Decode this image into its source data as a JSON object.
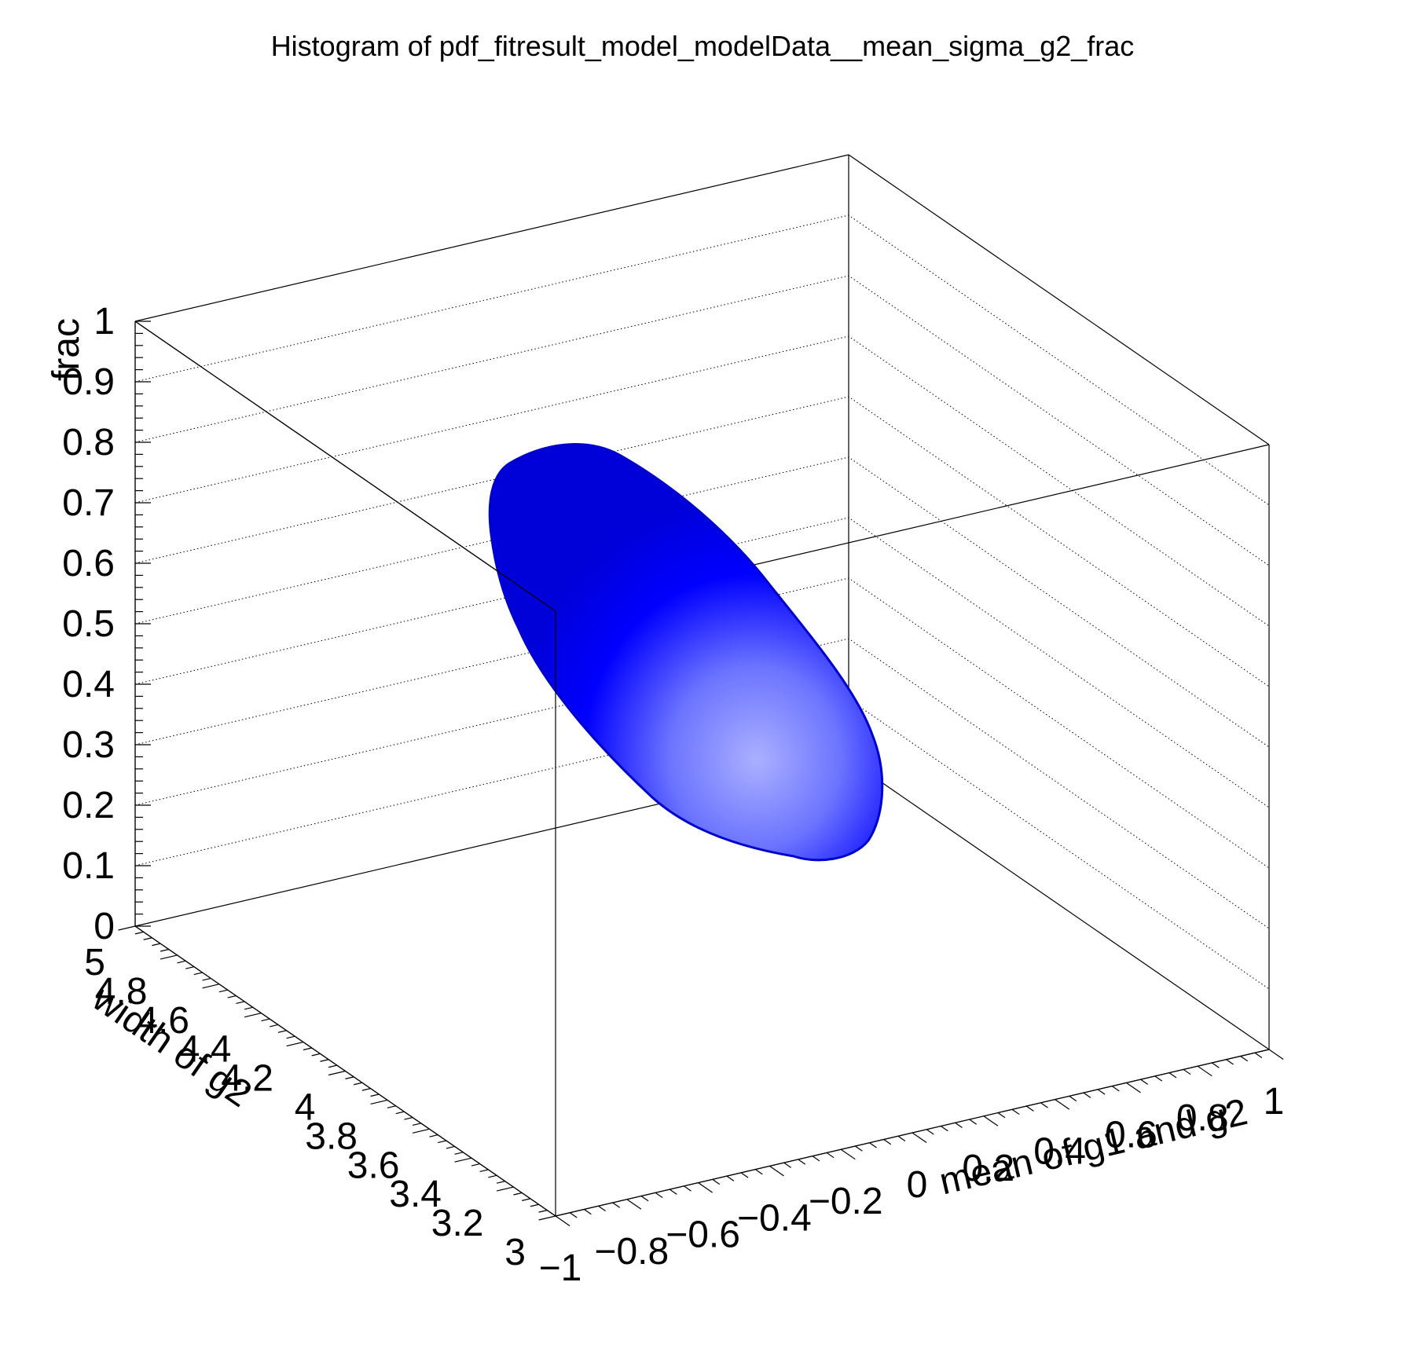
{
  "chart_data": {
    "type": "3d-isosurface",
    "title": "Histogram of pdf_fitresult_model_modelData__mean_sigma_g2_frac",
    "xlabel": "mean of g1 and g2",
    "ylabel": "width of g2",
    "zlabel": "frac",
    "xlim": [
      -1,
      1
    ],
    "ylim": [
      3,
      5
    ],
    "zlim": [
      0,
      1
    ],
    "x_ticks": [
      "−1",
      "−0.8",
      "−0.6",
      "−0.4",
      "−0.2",
      "0",
      "0.2",
      "0.4",
      "0.6",
      "0.8",
      "1"
    ],
    "y_ticks": [
      "3",
      "3.2",
      "3.4",
      "3.6",
      "3.8",
      "4",
      "4.2",
      "4.4",
      "4.6",
      "4.8",
      "5"
    ],
    "z_ticks": [
      "0",
      "0.1",
      "0.2",
      "0.3",
      "0.4",
      "0.5",
      "0.6",
      "0.7",
      "0.8",
      "0.9",
      "1"
    ],
    "grid": true,
    "surface_color": "#0000ff",
    "highlight_color": "#aab0ff"
  }
}
